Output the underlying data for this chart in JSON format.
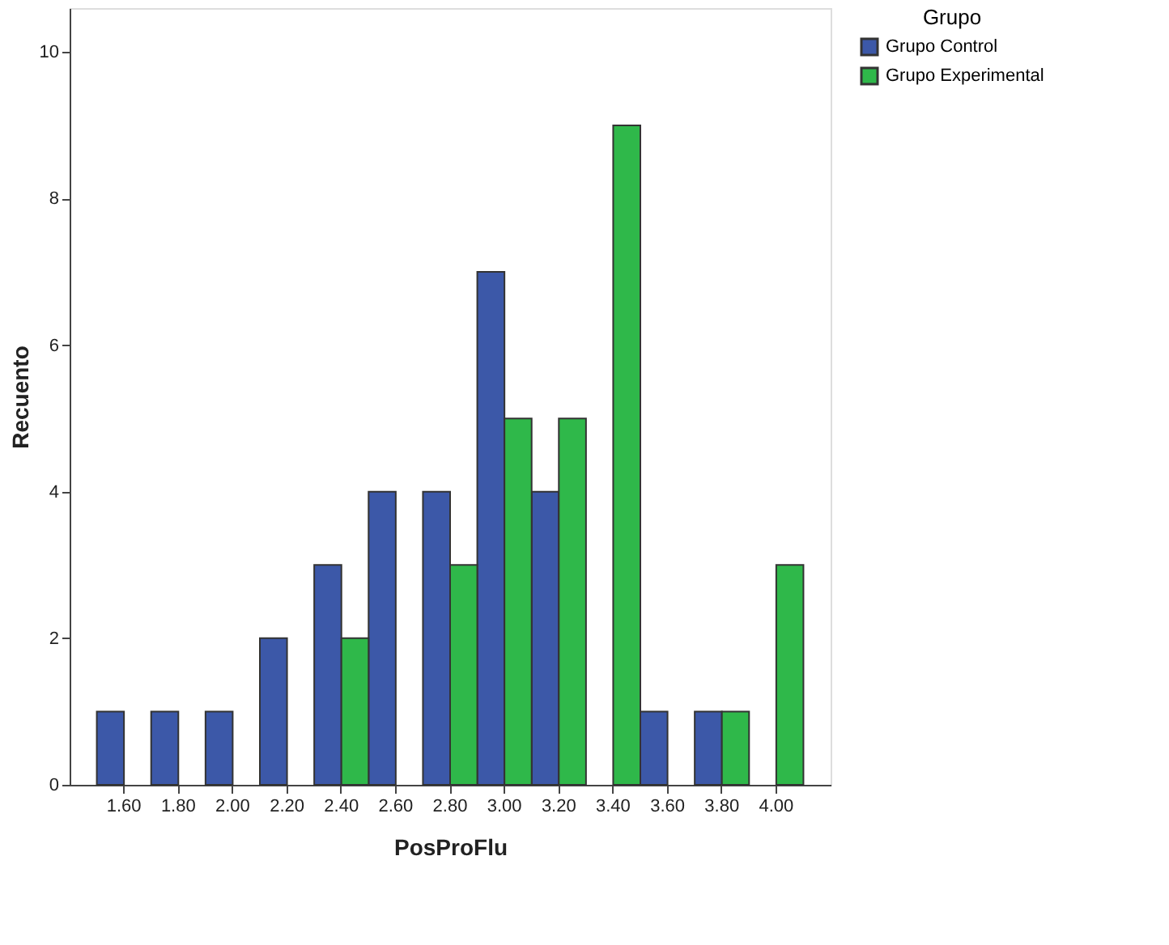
{
  "chart_data": {
    "type": "bar",
    "xlabel": "PosProFlu",
    "ylabel": "Recuento",
    "legend_title": "Grupo",
    "legend": "top right",
    "grid": false,
    "categories": [
      "1.60",
      "1.80",
      "2.00",
      "2.20",
      "2.40",
      "2.60",
      "2.80",
      "3.00",
      "3.20",
      "3.40",
      "3.60",
      "3.80",
      "4.00"
    ],
    "series": [
      {
        "name": "Grupo Control",
        "color": "#3c58a8",
        "values": [
          1,
          1,
          1,
          2,
          3,
          4,
          4,
          7,
          4,
          null,
          1,
          1,
          null
        ]
      },
      {
        "name": "Grupo Experimental",
        "color": "#2fb84a",
        "values": [
          null,
          null,
          null,
          null,
          2,
          null,
          3,
          5,
          5,
          9,
          null,
          1,
          3
        ]
      }
    ],
    "ylim": [
      0,
      10.6
    ],
    "yticks": [
      0,
      2,
      4,
      6,
      8,
      10
    ]
  }
}
